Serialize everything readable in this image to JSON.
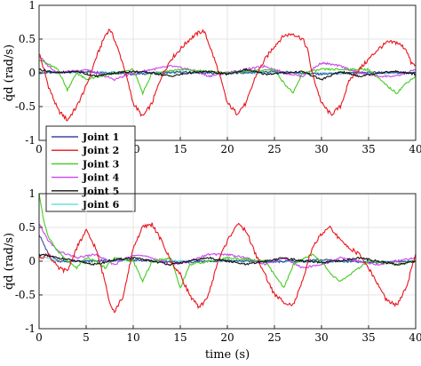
{
  "chart_data": [
    {
      "type": "line",
      "xlim": [
        0,
        40
      ],
      "ylim": [
        -1,
        1
      ],
      "xticks": [
        "0",
        "5",
        "10",
        "15",
        "20",
        "25",
        "30",
        "35",
        "40"
      ],
      "yticks": [
        "-1",
        "-0.5",
        "0",
        "0.5",
        "1"
      ],
      "xlabel": "",
      "ylabel": "q̇d (rad/s)",
      "grid": true,
      "legend": {
        "placement": "bottom-left",
        "entries": [
          {
            "name": "Joint 1",
            "color": "#3a4ba0"
          },
          {
            "name": "Joint 2",
            "color": "#e8141c"
          },
          {
            "name": "Joint 3",
            "color": "#44cc22"
          },
          {
            "name": "Joint 4",
            "color": "#cc44ee"
          },
          {
            "name": "Joint 5",
            "color": "#111111"
          },
          {
            "name": "Joint 6",
            "color": "#66e0e0"
          }
        ]
      },
      "series": [
        {
          "name": "Joint 1",
          "color": "#3a4ba0",
          "x": [
            0,
            5,
            10,
            15,
            20,
            25,
            30,
            35,
            40
          ],
          "y": [
            0,
            0.02,
            -0.02,
            0.01,
            -0.01,
            0.02,
            -0.02,
            0.01,
            0
          ]
        },
        {
          "name": "Joint 2",
          "color": "#e8141c",
          "x": [
            0,
            1,
            2,
            3,
            4,
            5,
            6,
            7,
            7.5,
            8,
            9,
            10,
            11,
            12,
            13,
            14,
            15,
            16,
            17,
            17.5,
            18,
            19,
            20,
            21,
            22,
            23,
            24,
            25,
            26,
            27,
            28,
            28.5,
            29,
            30,
            31,
            32,
            33,
            34,
            35,
            36,
            37,
            38,
            39,
            39.5,
            40
          ],
          "y": [
            0.3,
            -0.2,
            -0.55,
            -0.7,
            -0.5,
            -0.2,
            0.2,
            0.55,
            0.65,
            0.5,
            0.1,
            -0.45,
            -0.65,
            -0.45,
            -0.05,
            0.2,
            0.35,
            0.5,
            0.6,
            0.62,
            0.45,
            0.05,
            -0.45,
            -0.6,
            -0.45,
            -0.05,
            0.2,
            0.4,
            0.55,
            0.58,
            0.5,
            0.35,
            0.0,
            -0.45,
            -0.62,
            -0.5,
            -0.1,
            0.05,
            0.2,
            0.35,
            0.45,
            0.45,
            0.35,
            0.15,
            0.1
          ]
        },
        {
          "name": "Joint 3",
          "color": "#44cc22",
          "x": [
            0,
            2,
            3,
            4,
            5,
            10,
            11,
            12,
            15,
            20,
            25,
            26,
            27,
            28,
            30,
            35,
            37,
            38,
            39,
            40
          ],
          "y": [
            0.2,
            0.05,
            -0.25,
            0.0,
            -0.1,
            0.05,
            -0.3,
            0.0,
            0.05,
            0.0,
            0.05,
            -0.15,
            -0.3,
            0.0,
            0.05,
            0.05,
            -0.2,
            -0.3,
            -0.15,
            -0.05
          ]
        },
        {
          "name": "Joint 4",
          "color": "#cc44ee",
          "x": [
            0,
            1,
            2,
            5,
            7,
            8,
            10,
            12,
            14,
            16,
            18,
            20,
            22,
            24,
            26,
            28,
            30,
            32,
            34,
            36,
            38,
            40
          ],
          "y": [
            0.25,
            0.1,
            0.0,
            0.05,
            -0.05,
            -0.1,
            0.0,
            0.05,
            0.1,
            0.05,
            -0.05,
            0.0,
            0.05,
            0.1,
            0.0,
            -0.05,
            0.15,
            0.1,
            0.0,
            -0.05,
            -0.05,
            0.05
          ]
        },
        {
          "name": "Joint 5",
          "color": "#111111",
          "x": [
            0,
            2,
            4,
            6,
            8,
            10,
            12,
            14,
            16,
            18,
            20,
            22,
            24,
            26,
            28,
            30,
            32,
            34,
            36,
            38,
            40
          ],
          "y": [
            0.05,
            0.0,
            0.02,
            -0.05,
            0.0,
            0.02,
            0.0,
            -0.05,
            0.0,
            0.02,
            -0.02,
            0.05,
            -0.02,
            0.0,
            0.02,
            -0.1,
            0.02,
            -0.05,
            0.0,
            0.02,
            -0.02
          ]
        },
        {
          "name": "Joint 6",
          "color": "#66e0e0",
          "x": [
            0,
            10,
            20,
            30,
            40
          ],
          "y": [
            0,
            0.01,
            0,
            -0.01,
            0
          ]
        }
      ]
    },
    {
      "type": "line",
      "xlim": [
        0,
        40
      ],
      "ylim": [
        -1,
        1
      ],
      "xticks": [
        "0",
        "5",
        "10",
        "15",
        "20",
        "25",
        "30",
        "35",
        "40"
      ],
      "yticks": [
        "-1",
        "-0.5",
        "0",
        "0.5",
        "1"
      ],
      "xlabel": "time (s)",
      "ylabel": "q̇d (rad/s)",
      "grid": true,
      "series": [
        {
          "name": "Joint 1",
          "color": "#3a4ba0",
          "x": [
            0,
            1,
            2,
            5,
            10,
            15,
            20,
            25,
            30,
            35,
            40
          ],
          "y": [
            0.4,
            0.1,
            0.0,
            0.0,
            0.02,
            -0.02,
            0.01,
            -0.01,
            0.02,
            -0.02,
            0.0
          ]
        },
        {
          "name": "Joint 2",
          "color": "#e8141c",
          "x": [
            0,
            1,
            2,
            3,
            4,
            5,
            6,
            7,
            7.5,
            8,
            9,
            10,
            11,
            12,
            13,
            14,
            15,
            16,
            17,
            18,
            19,
            20,
            21,
            22,
            23,
            24,
            25,
            26,
            27,
            28,
            29,
            30,
            31,
            32,
            33,
            34,
            35,
            36,
            37,
            38,
            39,
            40
          ],
          "y": [
            0.05,
            0.1,
            -0.1,
            -0.15,
            0.2,
            0.45,
            0.2,
            -0.3,
            -0.6,
            -0.75,
            -0.5,
            0.2,
            0.5,
            0.55,
            0.3,
            0.0,
            -0.2,
            -0.5,
            -0.7,
            -0.5,
            0.0,
            0.3,
            0.55,
            0.45,
            0.1,
            -0.2,
            -0.5,
            -0.6,
            -0.65,
            -0.3,
            0.2,
            0.4,
            0.5,
            0.3,
            0.2,
            0.1,
            -0.1,
            -0.35,
            -0.6,
            -0.65,
            -0.4,
            0.1
          ]
        },
        {
          "name": "Joint 3",
          "color": "#44cc22",
          "x": [
            0,
            0.5,
            1,
            2,
            3,
            4,
            5,
            6,
            7,
            8,
            10,
            11,
            12,
            14,
            15,
            16,
            20,
            24,
            25,
            26,
            27,
            29,
            30,
            31,
            32,
            35,
            38,
            40
          ],
          "y": [
            1.0,
            0.6,
            0.35,
            0.15,
            0.0,
            -0.1,
            0.05,
            0.0,
            -0.1,
            0.05,
            0.0,
            -0.3,
            0.0,
            0.05,
            -0.4,
            -0.05,
            0.05,
            0.0,
            -0.2,
            -0.4,
            -0.05,
            0.1,
            0.0,
            -0.2,
            -0.3,
            0.0,
            -0.05,
            0.0
          ]
        },
        {
          "name": "Joint 4",
          "color": "#cc44ee",
          "x": [
            0,
            1,
            2,
            4,
            6,
            8,
            10,
            12,
            14,
            16,
            18,
            20,
            22,
            24,
            26,
            28,
            30,
            32,
            34,
            36,
            38,
            40
          ],
          "y": [
            0.55,
            0.3,
            0.15,
            0.05,
            0.1,
            -0.05,
            0.1,
            0.05,
            -0.05,
            0.0,
            0.1,
            0.1,
            0.05,
            -0.05,
            0.05,
            -0.1,
            -0.05,
            0.05,
            0.0,
            -0.05,
            0.0,
            0.05
          ]
        },
        {
          "name": "Joint 5",
          "color": "#111111",
          "x": [
            0,
            2,
            4,
            6,
            8,
            10,
            12,
            14,
            16,
            18,
            20,
            22,
            24,
            26,
            28,
            30,
            32,
            34,
            36,
            38,
            40
          ],
          "y": [
            0.1,
            0.05,
            0.0,
            -0.05,
            0.02,
            0.05,
            0.0,
            -0.05,
            0.0,
            0.05,
            0.0,
            -0.05,
            0.0,
            0.05,
            0.0,
            -0.02,
            0.0,
            0.05,
            0.0,
            -0.05,
            0.0
          ]
        },
        {
          "name": "Joint 6",
          "color": "#66e0e0",
          "x": [
            0,
            2,
            10,
            20,
            30,
            40
          ],
          "y": [
            0.1,
            0.0,
            0.01,
            0,
            -0.01,
            0
          ]
        }
      ]
    }
  ]
}
